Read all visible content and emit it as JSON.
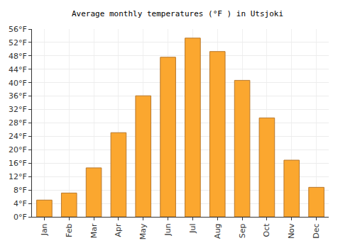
{
  "chart_data": {
    "type": "bar",
    "title": "Average monthly temperatures (°F ) in Utsjoki",
    "categories": [
      "Jan",
      "Feb",
      "Mar",
      "Apr",
      "May",
      "Jun",
      "Jul",
      "Aug",
      "Sep",
      "Oct",
      "Nov",
      "Dec"
    ],
    "values": [
      5.0,
      7.1,
      14.6,
      25.1,
      36.1,
      47.6,
      53.3,
      49.3,
      40.7,
      29.5,
      16.9,
      8.8
    ],
    "color": "#fba72f",
    "ylim": [
      0,
      56
    ],
    "yticks": [
      {
        "value": 0,
        "label": "0°F"
      },
      {
        "value": 4,
        "label": "4°F"
      },
      {
        "value": 8,
        "label": "8°F"
      },
      {
        "value": 12,
        "label": "12°F"
      },
      {
        "value": 16,
        "label": "16°F"
      },
      {
        "value": 20,
        "label": "20°F"
      },
      {
        "value": 24,
        "label": "24°F"
      },
      {
        "value": 28,
        "label": "28°F"
      },
      {
        "value": 32,
        "label": "32°F"
      },
      {
        "value": 36,
        "label": "36°F"
      },
      {
        "value": 40,
        "label": "40°F"
      },
      {
        "value": 44,
        "label": "44°F"
      },
      {
        "value": 48,
        "label": "48°F"
      },
      {
        "value": 52,
        "label": "52°F"
      },
      {
        "value": 56,
        "label": "56°F"
      }
    ],
    "grid": true
  }
}
